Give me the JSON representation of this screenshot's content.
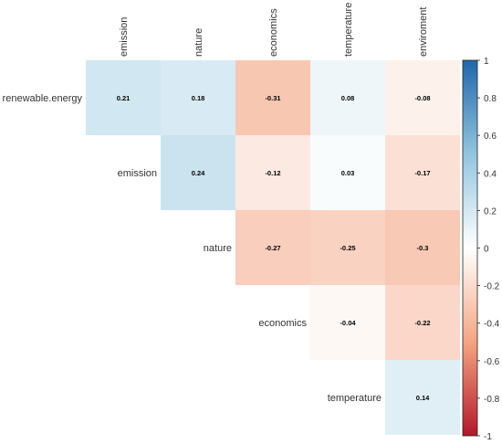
{
  "chart_data": {
    "type": "heatmap",
    "variant": "upper-triangle correlation matrix",
    "title": "",
    "columns": [
      "emission",
      "nature",
      "economics",
      "temperature",
      "enviroment"
    ],
    "rows": [
      "renewable.energy",
      "emission",
      "nature",
      "economics",
      "temperature"
    ],
    "cells": [
      {
        "row": "renewable.energy",
        "col": "emission",
        "value": 0.21,
        "label": "0.21"
      },
      {
        "row": "renewable.energy",
        "col": "nature",
        "value": 0.18,
        "label": "0.18"
      },
      {
        "row": "renewable.energy",
        "col": "economics",
        "value": -0.31,
        "label": "-0.31"
      },
      {
        "row": "renewable.energy",
        "col": "temperature",
        "value": 0.08,
        "label": "0.08"
      },
      {
        "row": "renewable.energy",
        "col": "enviroment",
        "value": -0.08,
        "label": "-0.08"
      },
      {
        "row": "emission",
        "col": "nature",
        "value": 0.24,
        "label": "0.24"
      },
      {
        "row": "emission",
        "col": "economics",
        "value": -0.12,
        "label": "-0.12"
      },
      {
        "row": "emission",
        "col": "temperature",
        "value": 0.03,
        "label": "0.03"
      },
      {
        "row": "emission",
        "col": "enviroment",
        "value": -0.17,
        "label": "-0.17"
      },
      {
        "row": "nature",
        "col": "economics",
        "value": -0.27,
        "label": "-0.27"
      },
      {
        "row": "nature",
        "col": "temperature",
        "value": -0.25,
        "label": "-0.25"
      },
      {
        "row": "nature",
        "col": "enviroment",
        "value": -0.3,
        "label": "-0.3"
      },
      {
        "row": "economics",
        "col": "temperature",
        "value": -0.04,
        "label": "-0.04"
      },
      {
        "row": "economics",
        "col": "enviroment",
        "value": -0.22,
        "label": "-0.22"
      },
      {
        "row": "temperature",
        "col": "enviroment",
        "value": 0.14,
        "label": "0.14"
      }
    ],
    "colorbar": {
      "range": [
        -1,
        1
      ],
      "ticks": [
        "1",
        "0.8",
        "0.6",
        "0.4",
        "0.2",
        "0",
        "-0.2",
        "-0.4",
        "-0.6",
        "-0.8",
        "-1"
      ],
      "colors": {
        "low": "#b2182b",
        "mid": "#ffffff",
        "high": "#2166ac"
      }
    }
  }
}
